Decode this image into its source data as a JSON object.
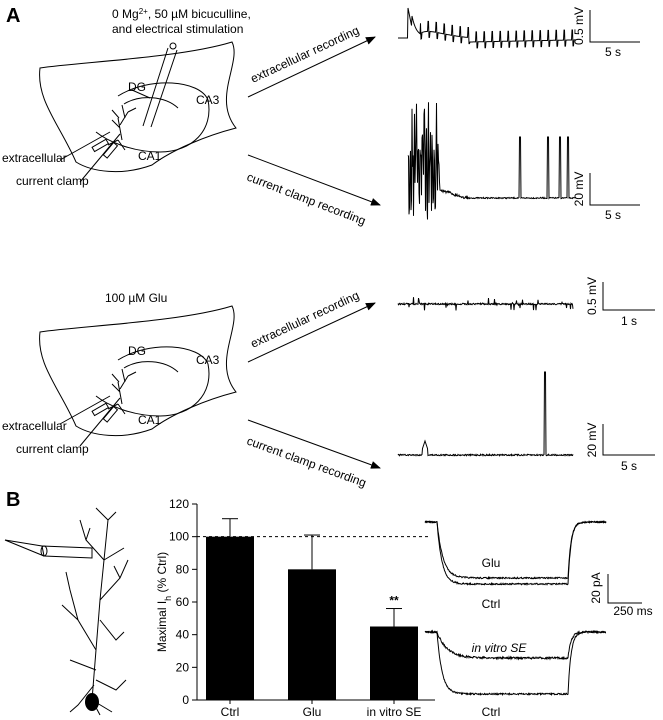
{
  "panel_a": {
    "letter": "A",
    "top": {
      "condition": {
        "pre": "0 Mg",
        "sup": "2+",
        "post": ", 50 µM bicuculline,",
        "line2": "and electrical stimulation"
      },
      "regions": {
        "dg": "DG",
        "ca3": "CA3",
        "ca1": "CA1"
      },
      "electrodes": {
        "extracellular": "extracellular",
        "clamp": "current clamp"
      },
      "arrows": {
        "extracellular": "extracellular recording",
        "clamp": "current clamp recording"
      },
      "scale_extracellular": {
        "v": "0.5 mV",
        "t": "5 s"
      },
      "scale_clamp": {
        "v": "20 mV",
        "t": "5 s"
      }
    },
    "bottom": {
      "condition": "100 µM Glu",
      "regions": {
        "dg": "DG",
        "ca3": "CA3",
        "ca1": "CA1"
      },
      "electrodes": {
        "extracellular": "extracellular",
        "clamp": "current clamp"
      },
      "arrows": {
        "extracellular": "extracellular recording",
        "clamp": "current clamp recording"
      },
      "scale_extracellular": {
        "v": "0.5 mV",
        "t": "1 s"
      },
      "scale_clamp": {
        "v": "20 mV",
        "t": "5 s"
      }
    }
  },
  "panel_b": {
    "letter": "B",
    "chart_data": {
      "type": "bar",
      "ylabel": {
        "main": "Maximal I",
        "sub": "h",
        "rest": " (% Ctrl)"
      },
      "categories": [
        "Ctrl",
        "Glu",
        "in vitro SE"
      ],
      "values": [
        100,
        80,
        45
      ],
      "errors": [
        11,
        21,
        11
      ],
      "color": "#000000",
      "reference_line": 100,
      "annotation": "**",
      "ylim": [
        0,
        120
      ],
      "yticks": [
        0,
        20,
        40,
        60,
        80,
        100,
        120
      ]
    },
    "traces": {
      "top": {
        "upper": "Glu",
        "lower": "Ctrl"
      },
      "bottom": {
        "upper": "in vitro SE",
        "lower": "Ctrl"
      },
      "scale": {
        "i": "20 pA",
        "t": "250 ms"
      }
    }
  }
}
